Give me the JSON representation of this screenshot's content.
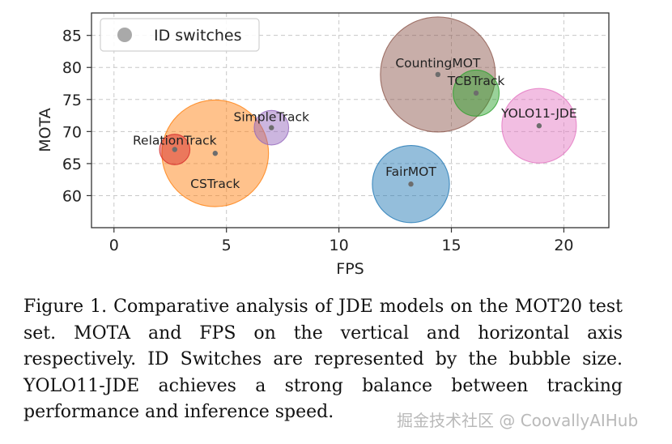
{
  "chart_data": {
    "type": "scatter",
    "xlabel": "FPS",
    "ylabel": "MOTA",
    "xlim": [
      -1.0,
      22.0
    ],
    "ylim": [
      55.0,
      88.5
    ],
    "xticks": [
      0,
      5,
      10,
      15,
      20
    ],
    "yticks": [
      60,
      65,
      70,
      75,
      80,
      85
    ],
    "grid": true,
    "legend": {
      "position": "top-left",
      "label": "ID switches",
      "color": "#a9a9a9"
    },
    "points": [
      {
        "label": "RelationTrack",
        "x": 2.7,
        "y": 67.2,
        "size": 0.07,
        "color": "#d62728"
      },
      {
        "label": "CSTrack",
        "x": 4.5,
        "y": 66.6,
        "size": 0.86,
        "color": "#ff7f0e"
      },
      {
        "label": "SimpleTrack",
        "x": 7.0,
        "y": 70.6,
        "size": 0.09,
        "color": "#9467bd"
      },
      {
        "label": "FairMOT",
        "x": 13.2,
        "y": 61.8,
        "size": 0.45,
        "color": "#1f77b4"
      },
      {
        "label": "CountingMOT",
        "x": 14.4,
        "y": 78.9,
        "size": 1.0,
        "color": "#8c564b"
      },
      {
        "label": "TCBTrack",
        "x": 16.1,
        "y": 76.0,
        "size": 0.16,
        "color": "#2ca02c"
      },
      {
        "label": "YOLO11-JDE",
        "x": 18.9,
        "y": 70.9,
        "size": 0.42,
        "color": "#e377c2"
      }
    ]
  },
  "caption": "Figure 1. Comparative analysis of JDE models on the MOT20 test set.  MOTA and FPS on the vertical and horizontal axis respectively. ID Switches are represented by the bubble size. YOLO11-JDE achieves a strong balance between tracking performance and inference speed.",
  "watermark": "掘金技术社区 @ CoovallyAIHub"
}
